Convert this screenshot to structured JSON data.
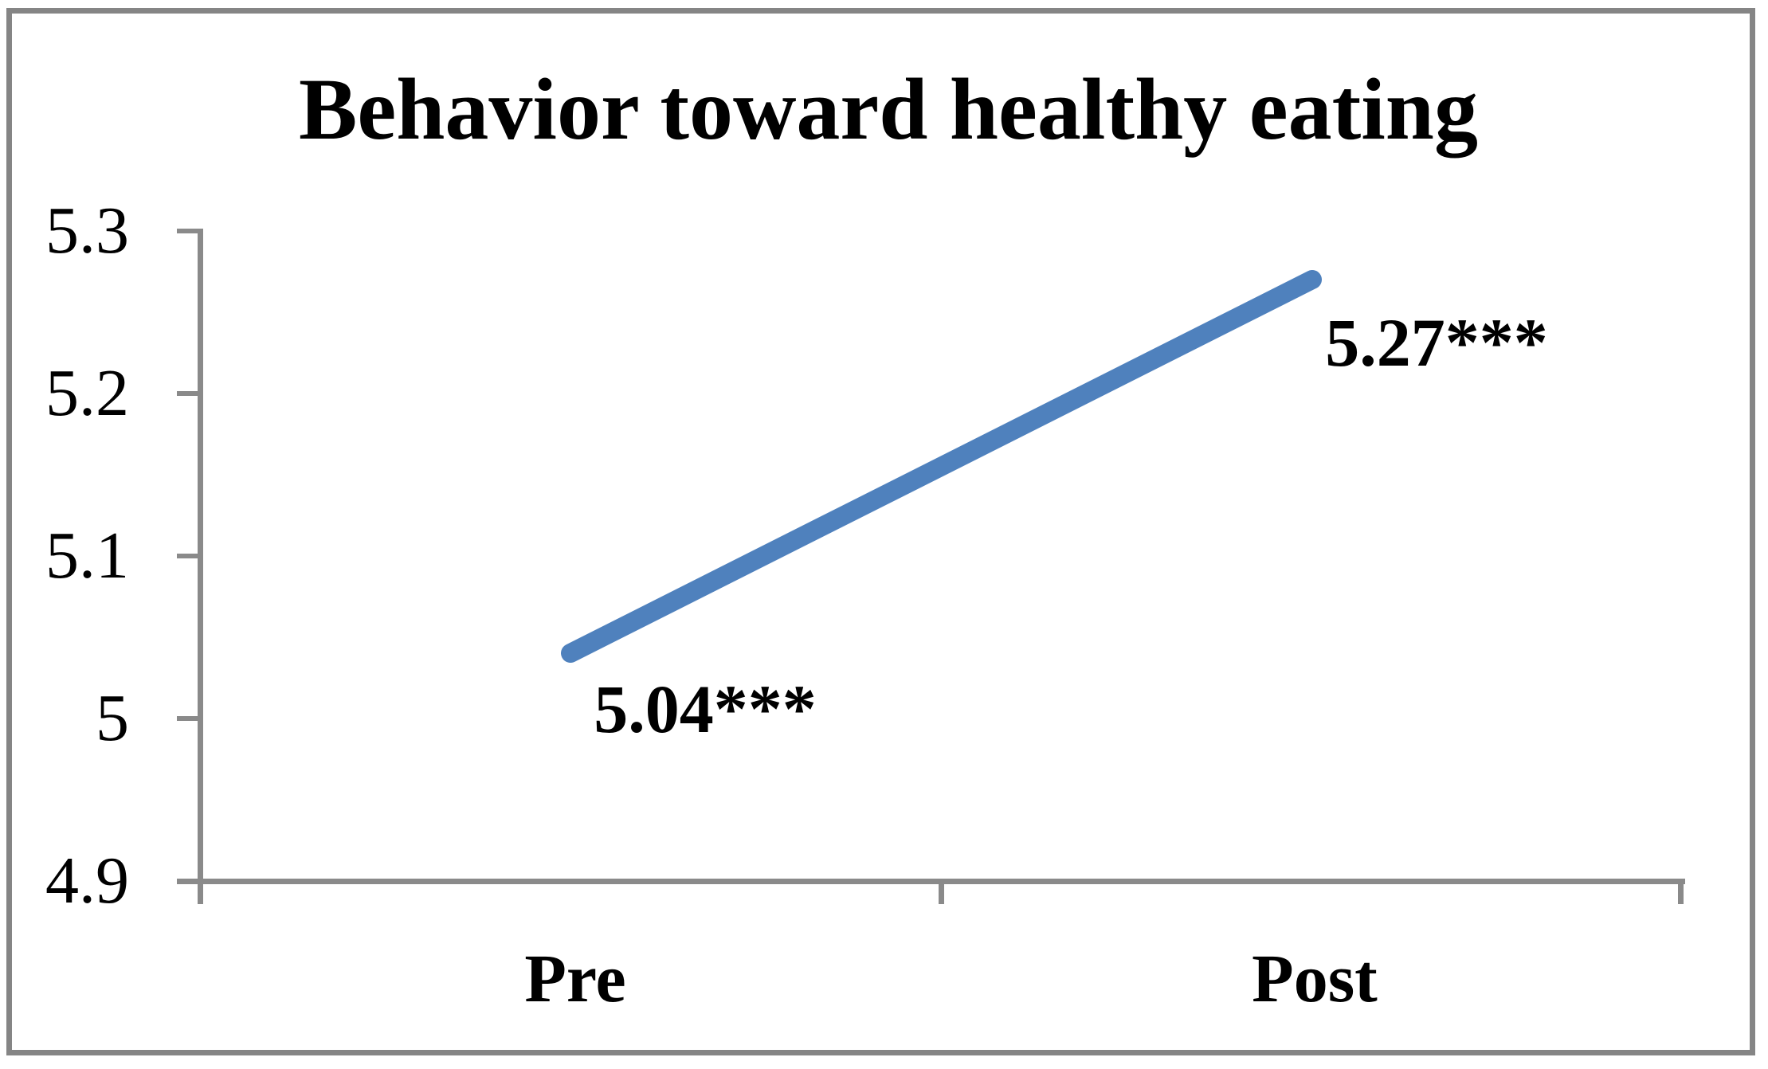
{
  "chart_data": {
    "type": "line",
    "title": "Behavior toward healthy eating",
    "categories": [
      "Pre",
      "Post"
    ],
    "series": [
      {
        "name": "Behavior toward healthy eating",
        "values": [
          5.04,
          5.27
        ]
      }
    ],
    "data_labels": [
      "5.04***",
      "5.27***"
    ],
    "yaxis": {
      "ticks": [
        "5.3",
        "5.2",
        "5.1",
        "5",
        "4.9"
      ],
      "tick_values": [
        5.3,
        5.2,
        5.1,
        5.0,
        4.9
      ],
      "ylim": [
        4.9,
        5.3
      ]
    },
    "xlabel": "",
    "ylabel": "",
    "grid": false,
    "legend": false,
    "colors": {
      "line": "#4F81BD",
      "axis": "#8A8A8A",
      "border": "#858585",
      "text": "#000000"
    }
  }
}
